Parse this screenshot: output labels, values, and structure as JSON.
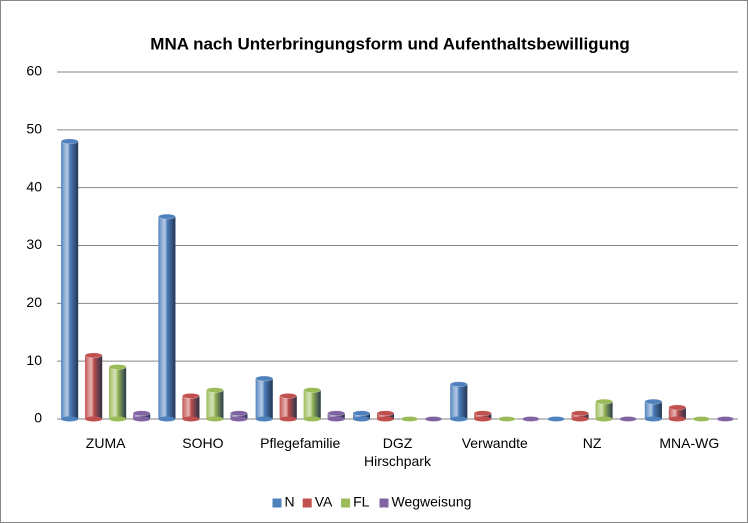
{
  "chart_data": {
    "type": "bar",
    "title": "MNA nach Unterbringungsform und Aufenthaltsbewilligung",
    "categories": [
      "ZUMA",
      "SOHO",
      "Pflegefamilie",
      "DGZ Hirschpark",
      "Verwandte",
      "NZ",
      "MNA-WG"
    ],
    "series": [
      {
        "name": "N",
        "color": "#4f81bd",
        "values": [
          48,
          35,
          7,
          1,
          6,
          0,
          3
        ]
      },
      {
        "name": "VA",
        "color": "#c0504d",
        "values": [
          11,
          4,
          4,
          1,
          1,
          1,
          2
        ]
      },
      {
        "name": "FL",
        "color": "#9bbb59",
        "values": [
          9,
          5,
          5,
          0,
          0,
          3,
          0
        ]
      },
      {
        "name": "Wegweisung",
        "color": "#8064a2",
        "values": [
          1,
          1,
          1,
          0,
          0,
          0,
          0
        ]
      }
    ],
    "ylim": [
      0,
      60
    ],
    "yticks": [
      0,
      10,
      20,
      30,
      40,
      50,
      60
    ],
    "grid": true,
    "legend": "bottom"
  }
}
